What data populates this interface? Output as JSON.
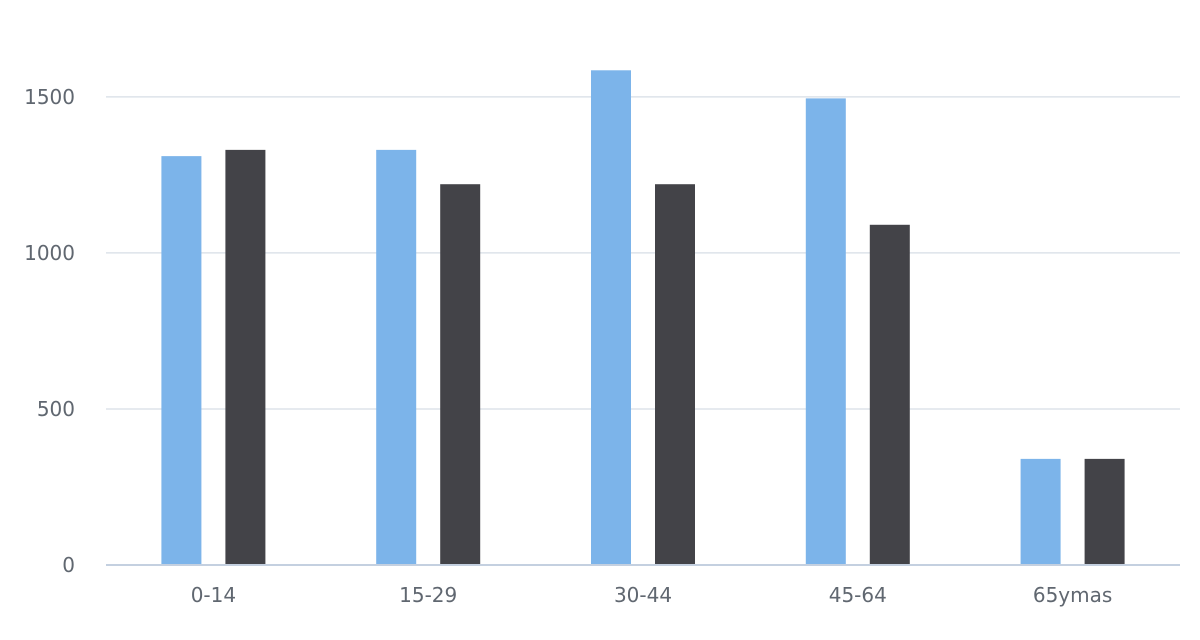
{
  "chart_data": {
    "type": "bar",
    "categories": [
      "0-14",
      "15-29",
      "30-44",
      "45-64",
      "65ymas"
    ],
    "series": [
      {
        "color": "#7cb4ea",
        "values": [
          1310,
          1330,
          1585,
          1495,
          340
        ]
      },
      {
        "color": "#434348",
        "values": [
          1330,
          1220,
          1220,
          1090,
          340
        ]
      }
    ],
    "yticks": [
      0,
      500,
      1000,
      1500
    ],
    "ylim": [
      0,
      1650
    ],
    "grid": true,
    "legend": "none",
    "title": "",
    "xlabel": "",
    "ylabel": ""
  }
}
